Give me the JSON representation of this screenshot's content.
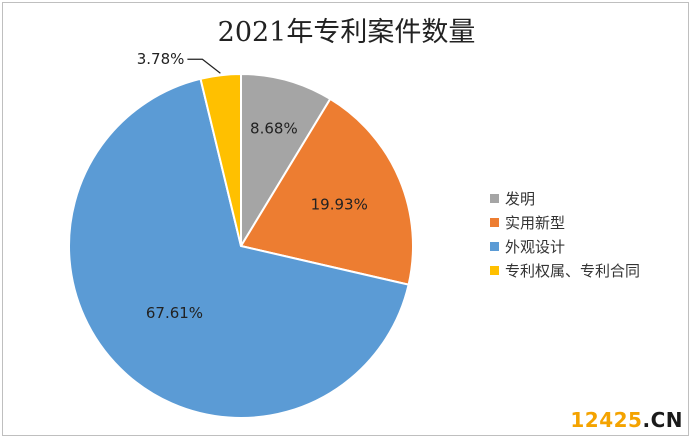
{
  "chart_data": {
    "type": "pie",
    "title": "2021年专利案件数量",
    "categories": [
      "发明",
      "实用新型",
      "外观设计",
      "专利权属、专利合同"
    ],
    "values": [
      8.68,
      19.93,
      67.61,
      3.78
    ],
    "labels": [
      "8.68%",
      "19.93%",
      "67.61%",
      "3.78%"
    ],
    "colors": [
      "#a5a5a5",
      "#ed7d31",
      "#5b9bd5",
      "#ffc000"
    ],
    "legend_position": "right",
    "start_angle": "top, clockwise"
  },
  "watermark": {
    "prefix": "12425",
    "suffix": ".CN"
  }
}
